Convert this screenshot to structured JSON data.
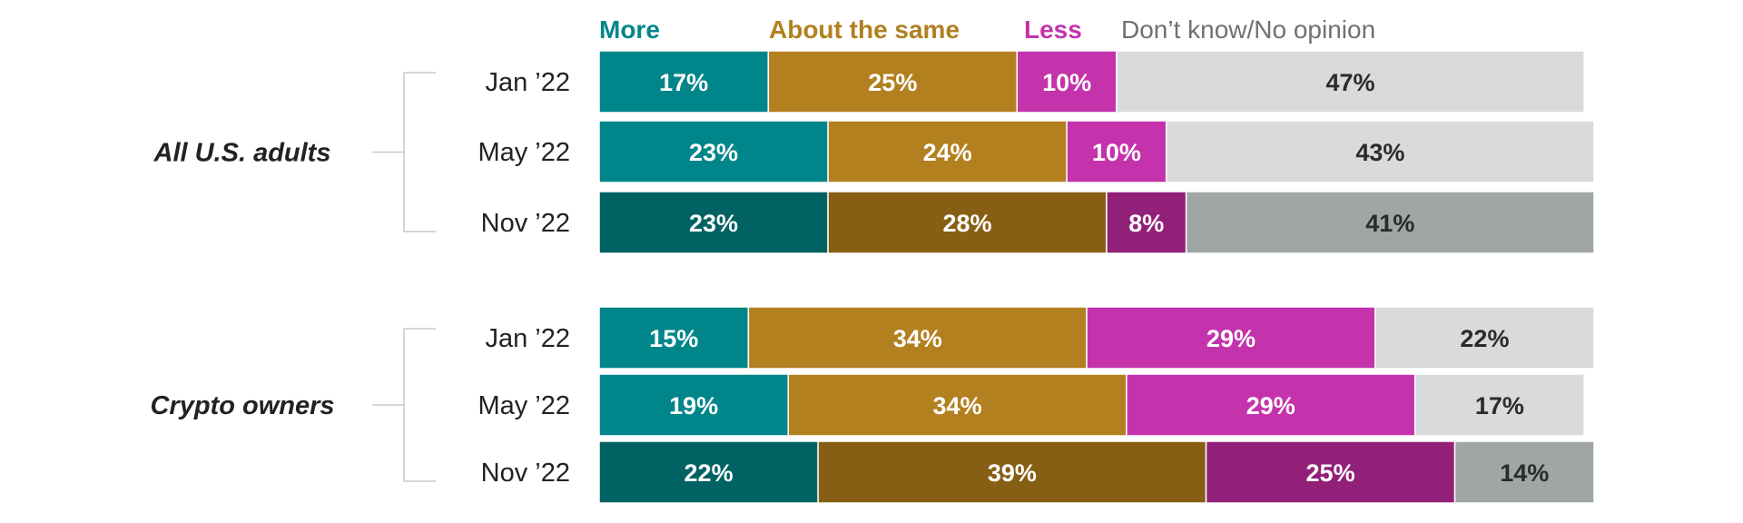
{
  "chart_data": {
    "type": "bar",
    "orientation": "horizontal",
    "stacked": true,
    "legend": [
      {
        "key": "more",
        "label": "More",
        "color": "#00868a"
      },
      {
        "key": "same",
        "label": "About the same",
        "color": "#b2801f"
      },
      {
        "key": "less",
        "label": "Less",
        "color": "#c433ab"
      },
      {
        "key": "dk",
        "label": "Don’t know/No opinion",
        "color": "#d8dadb"
      }
    ],
    "legend_placement": "top",
    "xlim": [
      0,
      100
    ],
    "groups": [
      {
        "label": "All U.S. adults",
        "rows": [
          {
            "label": "Jan ’22",
            "values": [
              17,
              25,
              10,
              47
            ],
            "labels": [
              "17%",
              "25%",
              "10%",
              "47%"
            ],
            "highlight": false
          },
          {
            "label": "May ’22",
            "values": [
              23,
              24,
              10,
              43
            ],
            "labels": [
              "23%",
              "24%",
              "10%",
              "43%"
            ],
            "highlight": false
          },
          {
            "label": "Nov ’22",
            "values": [
              23,
              28,
              8,
              41
            ],
            "labels": [
              "23%",
              "28%",
              "8%",
              "41%"
            ],
            "highlight": true
          }
        ]
      },
      {
        "label": "Crypto owners",
        "rows": [
          {
            "label": "Jan ’22",
            "values": [
              15,
              34,
              29,
              22
            ],
            "labels": [
              "15%",
              "34%",
              "29%",
              "22%"
            ],
            "highlight": false
          },
          {
            "label": "May ’22",
            "values": [
              19,
              34,
              29,
              17
            ],
            "labels": [
              "19%",
              "34%",
              "29%",
              "17%"
            ],
            "highlight": false
          },
          {
            "label": "Nov ’22",
            "values": [
              22,
              39,
              25,
              14
            ],
            "labels": [
              "22%",
              "39%",
              "25%",
              "14%"
            ],
            "highlight": true
          }
        ]
      }
    ],
    "colors": {
      "normal": [
        "#00868a",
        "#b2801f",
        "#c433ab",
        "#d8dadb"
      ],
      "highlight": [
        "#006262",
        "#875f14",
        "#922079",
        "#a0a5a5"
      ],
      "label_on_dark": "#ffffff",
      "label_on_light": "#2b2b2b",
      "legend_dk_text": "#707070",
      "bracket": "#c9c9c9"
    }
  }
}
